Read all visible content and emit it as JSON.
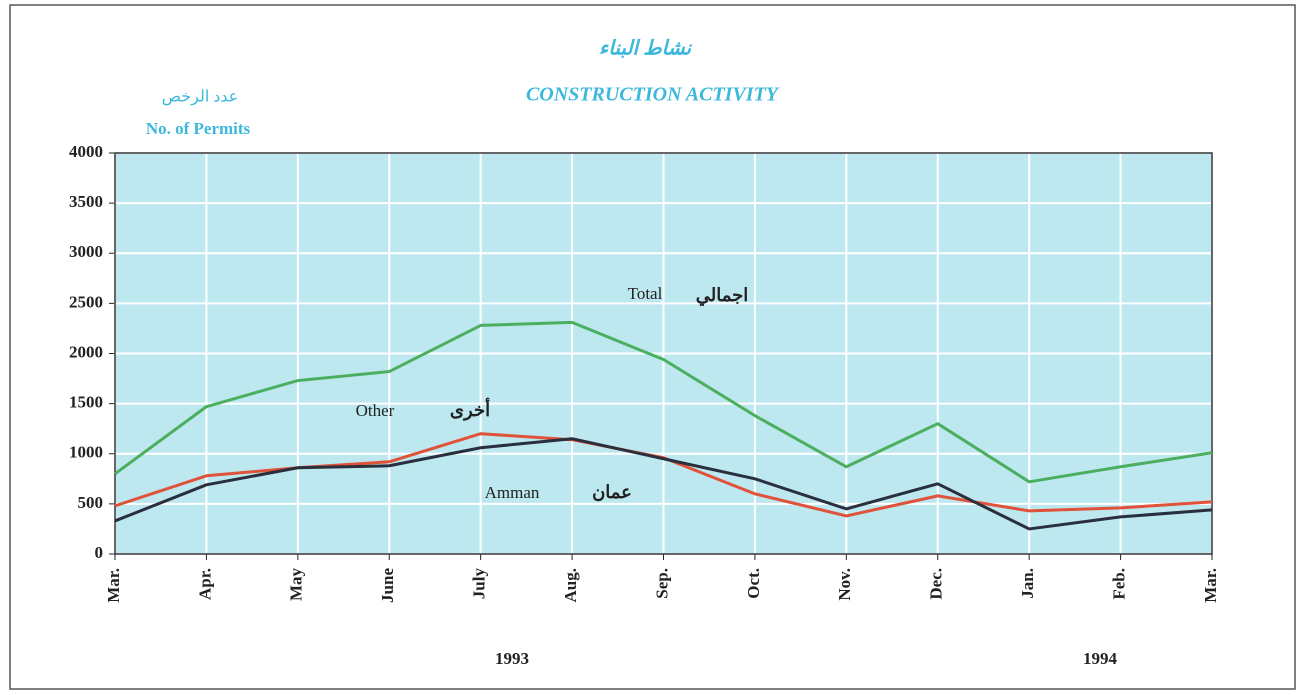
{
  "chart_data": {
    "type": "line",
    "title_ar": "نشاط البناء",
    "title": "CONSTRUCTION ACTIVITY",
    "y_label_ar": "عدد الرخص",
    "y_label": "No. of Permits",
    "categories": [
      "Mar.",
      "Apr.",
      "May",
      "June",
      "July",
      "Aug.",
      "Sep.",
      "Oct.",
      "Nov.",
      "Dec.",
      "Jan.",
      "Feb.",
      "Mar."
    ],
    "years": [
      "1993",
      "1994"
    ],
    "series": [
      {
        "name": "Total",
        "name_ar": "اجمالي",
        "color": "#4caf60",
        "values": [
          800,
          1470,
          1730,
          1820,
          2280,
          2310,
          1940,
          1380,
          870,
          1300,
          720,
          870,
          1010
        ]
      },
      {
        "name": "Other",
        "name_ar": "أخرى",
        "color": "#e0523a",
        "values": [
          480,
          780,
          860,
          920,
          1200,
          1140,
          960,
          600,
          380,
          580,
          430,
          460,
          520
        ]
      },
      {
        "name": "Amman",
        "name_ar": "عمان",
        "color": "#2a2f3e",
        "values": [
          330,
          690,
          860,
          880,
          1060,
          1150,
          950,
          750,
          450,
          700,
          250,
          370,
          440
        ]
      }
    ],
    "ylim": [
      0,
      4000
    ],
    "yticks": [
      0,
      500,
      1000,
      1500,
      2000,
      2500,
      3000,
      3500,
      4000
    ],
    "grid": true
  }
}
